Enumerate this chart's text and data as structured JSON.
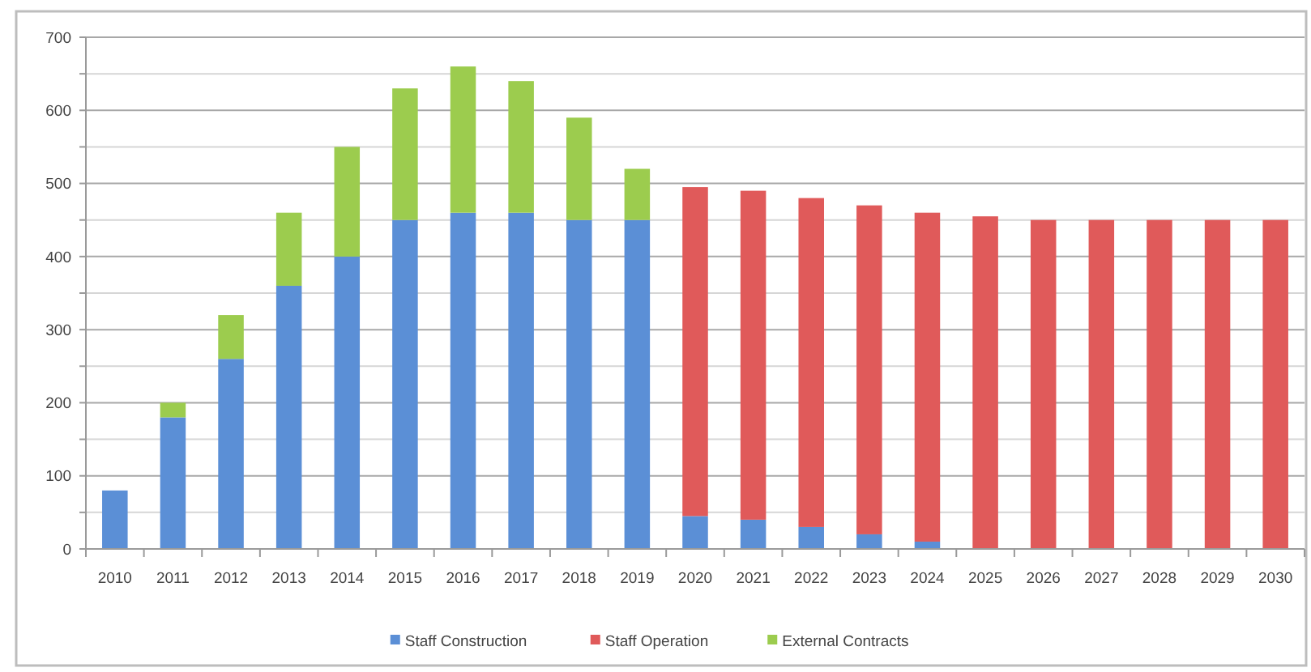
{
  "chart_data": {
    "type": "bar",
    "stacked": true,
    "categories": [
      "2010",
      "2011",
      "2012",
      "2013",
      "2014",
      "2015",
      "2016",
      "2017",
      "2018",
      "2019",
      "2020",
      "2021",
      "2022",
      "2023",
      "2024",
      "2025",
      "2026",
      "2027",
      "2028",
      "2029",
      "2030"
    ],
    "series": [
      {
        "name": "Staff Construction",
        "color": "#5b8fd6",
        "values": [
          80,
          180,
          260,
          360,
          400,
          450,
          460,
          460,
          450,
          450,
          45,
          40,
          30,
          20,
          10,
          null,
          null,
          null,
          null,
          null,
          null
        ]
      },
      {
        "name": "Staff Operation",
        "color": "#e05a5a",
        "values": [
          null,
          null,
          null,
          null,
          null,
          null,
          null,
          null,
          null,
          null,
          450,
          450,
          450,
          450,
          450,
          455,
          450,
          450,
          450,
          450,
          450
        ]
      },
      {
        "name": "External Contracts",
        "color": "#9ccc4e",
        "values": [
          null,
          20,
          60,
          100,
          150,
          180,
          200,
          180,
          140,
          70,
          null,
          null,
          null,
          null,
          null,
          null,
          null,
          null,
          null,
          null,
          null
        ]
      }
    ],
    "ylim": [
      0,
      700
    ],
    "yticks": [
      0,
      {
        "value": 50,
        "label": null
      },
      100,
      {
        "value": 150,
        "label": null
      },
      200,
      {
        "value": 250,
        "label": null
      },
      300,
      {
        "value": 350,
        "label": null
      },
      400,
      {
        "value": 450,
        "label": null
      },
      500,
      {
        "value": 550,
        "label": null
      },
      600,
      {
        "value": 650,
        "label": null
      },
      700
    ],
    "grid": "y",
    "legend": "bottom"
  }
}
